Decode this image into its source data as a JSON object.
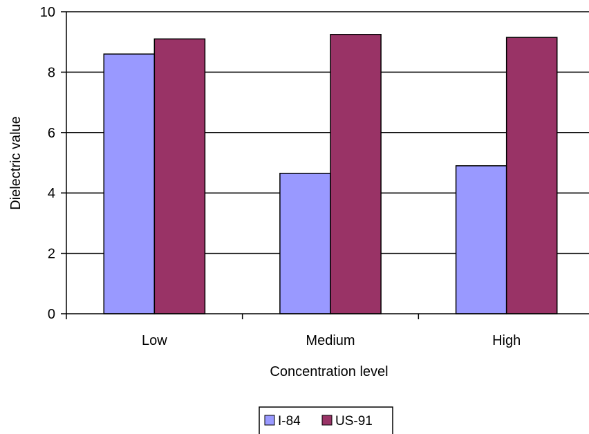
{
  "chart_data": {
    "type": "bar",
    "categories": [
      "Low",
      "Medium",
      "High"
    ],
    "series": [
      {
        "name": "I-84",
        "values": [
          8.6,
          4.65,
          4.9
        ],
        "color": "#9999ff"
      },
      {
        "name": "US-91",
        "values": [
          9.1,
          9.25,
          9.15
        ],
        "color": "#993366"
      }
    ],
    "xlabel": "Concentration level",
    "ylabel": "Dielectric value",
    "ylim": [
      0,
      10
    ],
    "yticks": [
      "0",
      "2",
      "4",
      "6",
      "8",
      "10"
    ],
    "grid": true,
    "legend_position": "bottom"
  }
}
